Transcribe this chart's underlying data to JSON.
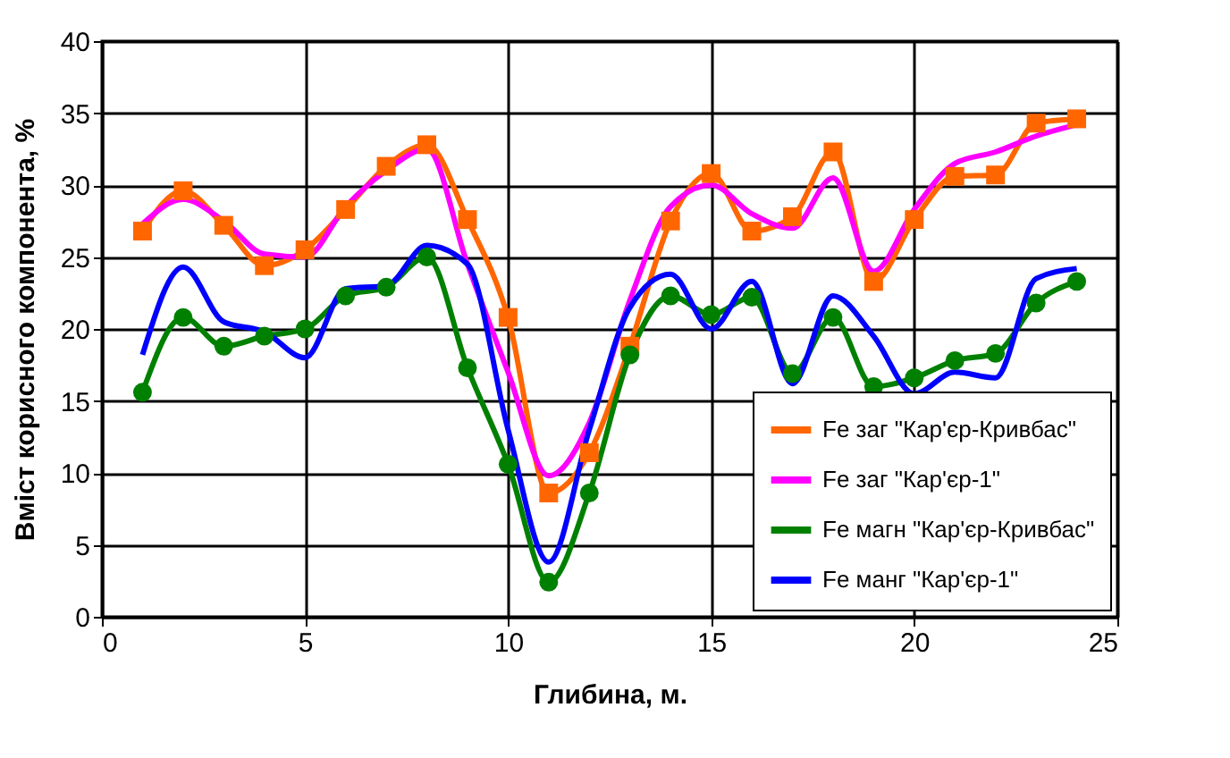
{
  "chart_data": {
    "type": "line",
    "xlabel": "Глибина, м.",
    "ylabel": "Вміст корисного компонента, %",
    "x": [
      1,
      2,
      3,
      4,
      5,
      6,
      7,
      8,
      9,
      10,
      11,
      12,
      13,
      14,
      15,
      16,
      17,
      18,
      19,
      20,
      21,
      22,
      23,
      24
    ],
    "xlim": [
      0,
      25
    ],
    "xticks": [
      0,
      5,
      10,
      15,
      20,
      25
    ],
    "ylim": [
      0,
      40
    ],
    "yticks": [
      0,
      5,
      10,
      15,
      20,
      25,
      30,
      35,
      40
    ],
    "grid": true,
    "legend": "bottom right",
    "series": [
      {
        "name": "Fe заг \"Кар'єр-Кривбас\"",
        "color": "#ff6600",
        "marker": "square",
        "values": [
          26.8,
          29.6,
          27.2,
          24.4,
          25.5,
          28.3,
          31.3,
          32.8,
          27.6,
          20.8,
          8.6,
          11.4,
          18.8,
          27.5,
          30.8,
          26.8,
          27.8,
          32.3,
          23.3,
          27.6,
          30.6,
          30.7,
          34.3,
          34.6
        ]
      },
      {
        "name": "Fe заг \"Кар'єр-1\"",
        "color": "#ff00ff",
        "values": [
          27.3,
          29.0,
          27.5,
          25.2,
          25.0,
          28.5,
          31.0,
          32.5,
          24.5,
          17.0,
          9.8,
          13.5,
          22.0,
          28.5,
          30.0,
          28.0,
          27.0,
          30.5,
          24.0,
          28.3,
          31.5,
          32.3,
          33.4,
          34.2
        ]
      },
      {
        "name": "Fe магн \"Кар'єр-Кривбас\"",
        "color": "#008000",
        "marker": "circle",
        "values": [
          15.6,
          20.8,
          18.8,
          19.5,
          20.0,
          22.3,
          22.9,
          25.0,
          17.3,
          10.6,
          2.4,
          8.6,
          18.2,
          22.3,
          21.0,
          22.2,
          16.9,
          20.8,
          16.0,
          16.6,
          17.8,
          18.3,
          21.8,
          23.3
        ]
      },
      {
        "name": "Fe манг \"Кар'єр-1\"",
        "color": "#0000ff",
        "values": [
          18.2,
          24.3,
          20.5,
          19.8,
          18.0,
          22.8,
          23.0,
          25.8,
          24.5,
          13.0,
          3.8,
          13.0,
          21.5,
          23.8,
          20.0,
          23.3,
          16.2,
          22.3,
          19.5,
          15.5,
          17.0,
          16.6,
          23.5,
          24.2
        ]
      }
    ]
  }
}
